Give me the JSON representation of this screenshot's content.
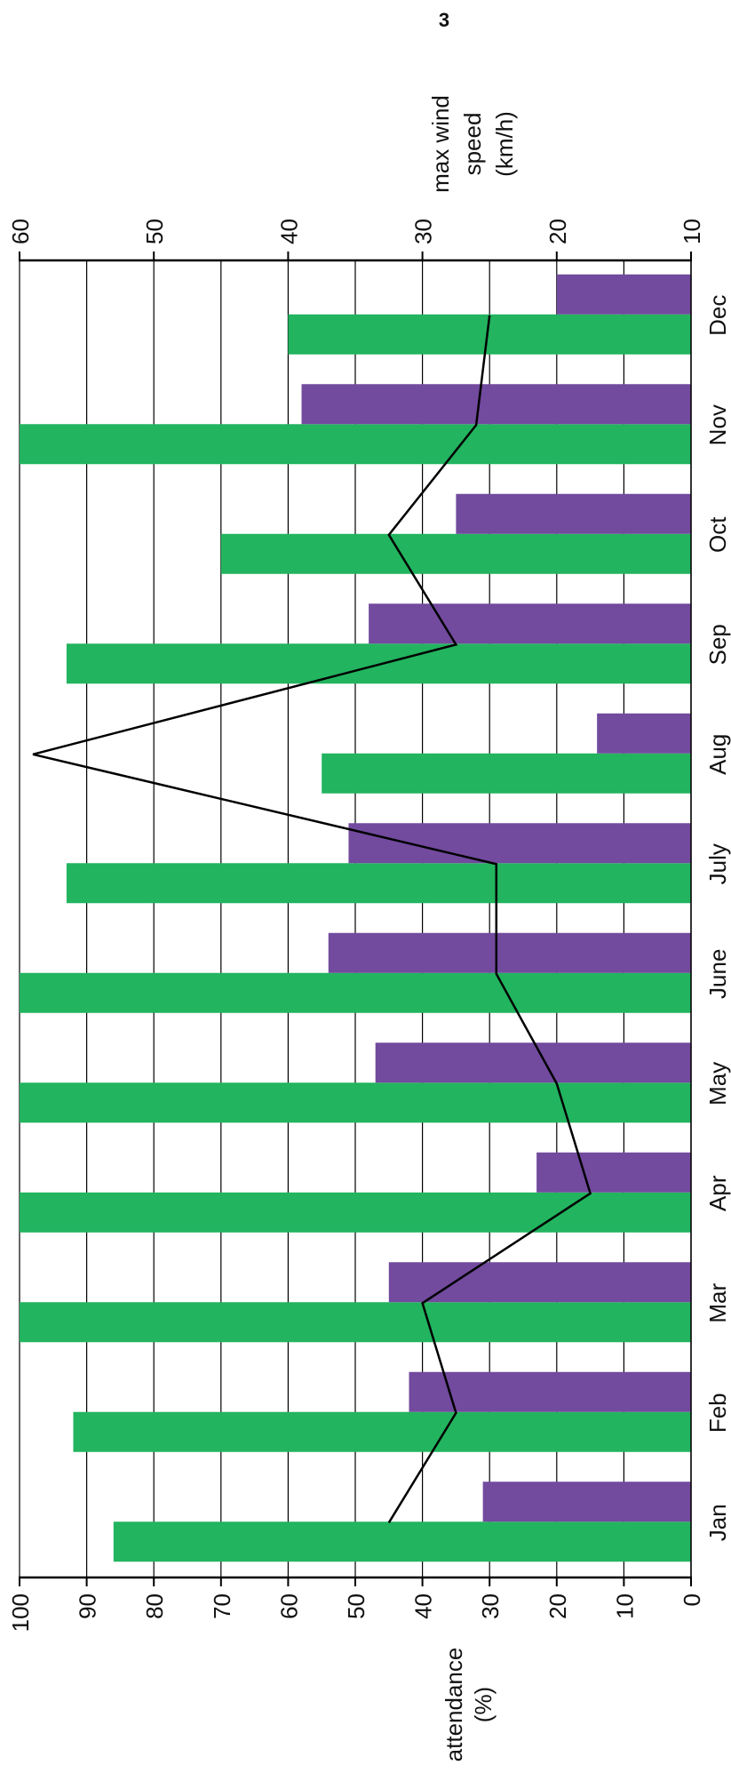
{
  "page_number": "3",
  "chart_data": {
    "type": "bar",
    "orientation": "rotated-90",
    "categories": [
      "Jan",
      "Feb",
      "Mar",
      "Apr",
      "May",
      "June",
      "July",
      "Aug",
      "Sep",
      "Oct",
      "Nov",
      "Dec"
    ],
    "series": [
      {
        "type": "bar",
        "axis": "primary",
        "color": "#22b45f",
        "values": [
          86,
          92,
          100,
          100,
          100,
          100,
          93,
          55,
          93,
          70,
          100,
          60
        ]
      },
      {
        "type": "bar",
        "axis": "secondary",
        "color": "#724a9e",
        "values": [
          31,
          42,
          45,
          23,
          47,
          54,
          51,
          14,
          48,
          35,
          58,
          20
        ]
      },
      {
        "type": "line",
        "axis": "secondary",
        "color": "#000000",
        "values": [
          45,
          35,
          40,
          15,
          20,
          29,
          29,
          98,
          35,
          45,
          32,
          30
        ]
      }
    ],
    "primary_axis": {
      "label_line1": "attendance",
      "label_line2": "(%)",
      "range": [
        0,
        100
      ],
      "ticks": [
        "0",
        "10",
        "20",
        "30",
        "40",
        "50",
        "60",
        "70",
        "80",
        "90",
        "100"
      ]
    },
    "secondary_axis": {
      "label_line1": "max wind",
      "label_line2": "speed",
      "label_line3": "(km/h)",
      "range": [
        10,
        60
      ],
      "ticks": [
        "10",
        "20",
        "30",
        "40",
        "50",
        "60"
      ]
    },
    "grid": true
  }
}
